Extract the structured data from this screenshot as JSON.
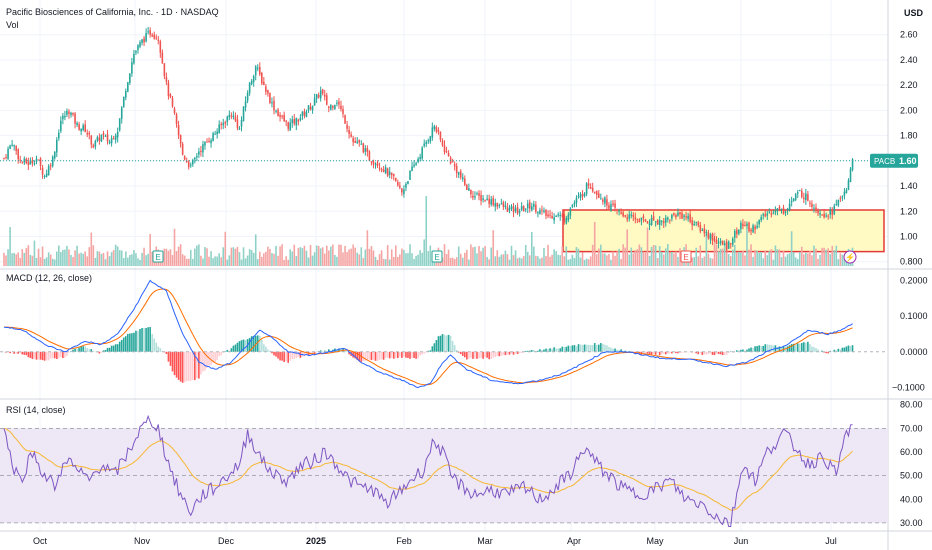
{
  "header": {
    "title": "Pacific Biosciences of California, Inc. · 1D · NASDAQ",
    "volume_label": "Vol",
    "currency": "USD"
  },
  "price_tag": {
    "symbol": "PACB",
    "value": "1.60"
  },
  "colors": {
    "up": "#26a69a",
    "down": "#ef5350",
    "volume_up": "#8fd1c7",
    "volume_down": "#f4a5a3",
    "macd_line": "#2962ff",
    "signal_line": "#ff6d00",
    "rsi_line": "#7e57c2",
    "rsi_ma": "#f7b731",
    "rsi_band": "#ede7f6",
    "box_fill": "#fff9c4",
    "box_stroke": "#e53935",
    "grid": "#f0f3fa"
  },
  "chart_data": {
    "type": "candlestick",
    "price_axis": {
      "ticks": [
        "2.60",
        "2.40",
        "2.20",
        "2.00",
        "1.80",
        "1.60",
        "1.40",
        "1.20",
        "1.00",
        "0.800"
      ],
      "range": [
        0.75,
        2.78
      ]
    },
    "macd_axis": {
      "ticks": [
        "0.2000",
        "0.1000",
        "0.0000",
        "−0.1000"
      ],
      "range": [
        -0.13,
        0.23
      ]
    },
    "rsi_axis": {
      "ticks": [
        "80.00",
        "70.00",
        "60.00",
        "50.00",
        "40.00",
        "30.00"
      ],
      "range": [
        27,
        82
      ]
    },
    "time_axis": [
      "Oct",
      "Nov",
      "Dec",
      "2025",
      "Feb",
      "Mar",
      "Apr",
      "May",
      "Jun",
      "Jul"
    ],
    "macd_label": "MACD (12, 26, close)",
    "rsi_label": "RSI (14, close)",
    "earnings_markers": [
      "E",
      "E",
      "E"
    ],
    "highlight_box": {
      "price_top": 1.21,
      "price_bottom": 0.88
    },
    "price_anchors": [
      [
        0,
        1.62
      ],
      [
        4,
        1.75
      ],
      [
        8,
        1.6
      ],
      [
        12,
        1.58
      ],
      [
        16,
        1.62
      ],
      [
        20,
        1.48
      ],
      [
        24,
        1.62
      ],
      [
        28,
        1.92
      ],
      [
        32,
        2.0
      ],
      [
        36,
        1.88
      ],
      [
        40,
        1.85
      ],
      [
        44,
        1.72
      ],
      [
        48,
        1.8
      ],
      [
        52,
        1.75
      ],
      [
        56,
        1.85
      ],
      [
        60,
        2.18
      ],
      [
        64,
        2.45
      ],
      [
        68,
        2.55
      ],
      [
        72,
        2.62
      ],
      [
        76,
        2.58
      ],
      [
        80,
        2.2
      ],
      [
        84,
        1.95
      ],
      [
        88,
        1.65
      ],
      [
        92,
        1.55
      ],
      [
        96,
        1.68
      ],
      [
        100,
        1.75
      ],
      [
        104,
        1.82
      ],
      [
        108,
        1.9
      ],
      [
        112,
        1.98
      ],
      [
        116,
        1.85
      ],
      [
        120,
        2.15
      ],
      [
        124,
        2.35
      ],
      [
        128,
        2.2
      ],
      [
        132,
        2.05
      ],
      [
        136,
        1.95
      ],
      [
        140,
        1.88
      ],
      [
        144,
        1.92
      ],
      [
        148,
        1.98
      ],
      [
        152,
        2.05
      ],
      [
        156,
        2.15
      ],
      [
        160,
        2.02
      ],
      [
        164,
        2.08
      ],
      [
        168,
        1.92
      ],
      [
        172,
        1.75
      ],
      [
        176,
        1.72
      ],
      [
        180,
        1.62
      ],
      [
        184,
        1.58
      ],
      [
        188,
        1.52
      ],
      [
        192,
        1.45
      ],
      [
        196,
        1.35
      ],
      [
        200,
        1.5
      ],
      [
        204,
        1.62
      ],
      [
        208,
        1.75
      ],
      [
        212,
        1.88
      ],
      [
        216,
        1.72
      ],
      [
        220,
        1.6
      ],
      [
        224,
        1.5
      ],
      [
        228,
        1.38
      ],
      [
        232,
        1.32
      ],
      [
        236,
        1.3
      ],
      [
        240,
        1.28
      ],
      [
        244,
        1.25
      ],
      [
        248,
        1.22
      ],
      [
        252,
        1.2
      ],
      [
        256,
        1.22
      ],
      [
        260,
        1.25
      ],
      [
        264,
        1.2
      ],
      [
        268,
        1.16
      ],
      [
        272,
        1.18
      ],
      [
        276,
        1.14
      ],
      [
        280,
        1.25
      ],
      [
        284,
        1.32
      ],
      [
        288,
        1.42
      ],
      [
        292,
        1.35
      ],
      [
        296,
        1.28
      ],
      [
        300,
        1.22
      ],
      [
        304,
        1.18
      ],
      [
        308,
        1.15
      ],
      [
        312,
        1.14
      ],
      [
        316,
        1.12
      ],
      [
        320,
        1.13
      ],
      [
        324,
        1.12
      ],
      [
        328,
        1.15
      ],
      [
        332,
        1.18
      ],
      [
        336,
        1.16
      ],
      [
        340,
        1.1
      ],
      [
        344,
        1.05
      ],
      [
        348,
        1.0
      ],
      [
        352,
        0.95
      ],
      [
        356,
        0.92
      ],
      [
        360,
        1.02
      ],
      [
        364,
        1.1
      ],
      [
        368,
        1.05
      ],
      [
        372,
        1.12
      ],
      [
        376,
        1.18
      ],
      [
        380,
        1.22
      ],
      [
        384,
        1.2
      ],
      [
        388,
        1.28
      ],
      [
        392,
        1.35
      ],
      [
        396,
        1.3
      ],
      [
        400,
        1.22
      ],
      [
        404,
        1.18
      ],
      [
        408,
        1.2
      ],
      [
        412,
        1.3
      ],
      [
        416,
        1.42
      ],
      [
        418,
        1.6
      ]
    ],
    "macd_anchors": [
      [
        0,
        0.07
      ],
      [
        10,
        0.06
      ],
      [
        20,
        0.02
      ],
      [
        30,
        0.0
      ],
      [
        40,
        0.03
      ],
      [
        48,
        0.02
      ],
      [
        56,
        0.05
      ],
      [
        64,
        0.12
      ],
      [
        72,
        0.2
      ],
      [
        80,
        0.17
      ],
      [
        88,
        0.05
      ],
      [
        96,
        -0.03
      ],
      [
        104,
        -0.05
      ],
      [
        112,
        -0.03
      ],
      [
        120,
        0.02
      ],
      [
        126,
        0.06
      ],
      [
        132,
        0.04
      ],
      [
        140,
        0.0
      ],
      [
        150,
        -0.01
      ],
      [
        160,
        0.0
      ],
      [
        168,
        0.01
      ],
      [
        176,
        -0.03
      ],
      [
        186,
        -0.06
      ],
      [
        196,
        -0.08
      ],
      [
        204,
        -0.1
      ],
      [
        210,
        -0.09
      ],
      [
        216,
        -0.03
      ],
      [
        220,
        -0.01
      ],
      [
        228,
        -0.05
      ],
      [
        240,
        -0.08
      ],
      [
        252,
        -0.09
      ],
      [
        264,
        -0.08
      ],
      [
        276,
        -0.06
      ],
      [
        286,
        -0.03
      ],
      [
        296,
        0.0
      ],
      [
        306,
        0.0
      ],
      [
        316,
        -0.01
      ],
      [
        326,
        -0.02
      ],
      [
        336,
        -0.02
      ],
      [
        346,
        -0.03
      ],
      [
        356,
        -0.04
      ],
      [
        366,
        -0.03
      ],
      [
        376,
        0.0
      ],
      [
        386,
        0.02
      ],
      [
        396,
        0.06
      ],
      [
        406,
        0.05
      ],
      [
        412,
        0.06
      ],
      [
        418,
        0.08
      ]
    ],
    "rsi_anchors": [
      [
        0,
        70
      ],
      [
        4,
        55
      ],
      [
        8,
        48
      ],
      [
        14,
        60
      ],
      [
        20,
        50
      ],
      [
        26,
        45
      ],
      [
        30,
        58
      ],
      [
        36,
        52
      ],
      [
        42,
        48
      ],
      [
        48,
        55
      ],
      [
        54,
        50
      ],
      [
        60,
        58
      ],
      [
        66,
        68
      ],
      [
        72,
        74
      ],
      [
        76,
        70
      ],
      [
        80,
        58
      ],
      [
        84,
        48
      ],
      [
        88,
        40
      ],
      [
        92,
        35
      ],
      [
        98,
        42
      ],
      [
        104,
        45
      ],
      [
        110,
        50
      ],
      [
        116,
        55
      ],
      [
        120,
        68
      ],
      [
        124,
        62
      ],
      [
        128,
        55
      ],
      [
        134,
        50
      ],
      [
        140,
        48
      ],
      [
        146,
        54
      ],
      [
        152,
        56
      ],
      [
        158,
        60
      ],
      [
        164,
        55
      ],
      [
        170,
        48
      ],
      [
        176,
        45
      ],
      [
        182,
        44
      ],
      [
        188,
        38
      ],
      [
        194,
        42
      ],
      [
        200,
        48
      ],
      [
        206,
        52
      ],
      [
        212,
        65
      ],
      [
        216,
        60
      ],
      [
        220,
        50
      ],
      [
        226,
        45
      ],
      [
        232,
        42
      ],
      [
        240,
        44
      ],
      [
        248,
        42
      ],
      [
        256,
        45
      ],
      [
        264,
        40
      ],
      [
        272,
        45
      ],
      [
        280,
        52
      ],
      [
        286,
        62
      ],
      [
        292,
        55
      ],
      [
        298,
        50
      ],
      [
        304,
        45
      ],
      [
        312,
        42
      ],
      [
        320,
        44
      ],
      [
        328,
        48
      ],
      [
        336,
        40
      ],
      [
        344,
        38
      ],
      [
        352,
        32
      ],
      [
        358,
        30
      ],
      [
        364,
        55
      ],
      [
        370,
        48
      ],
      [
        376,
        60
      ],
      [
        384,
        68
      ],
      [
        390,
        62
      ],
      [
        396,
        55
      ],
      [
        404,
        58
      ],
      [
        410,
        50
      ],
      [
        414,
        66
      ],
      [
        418,
        72
      ]
    ]
  }
}
